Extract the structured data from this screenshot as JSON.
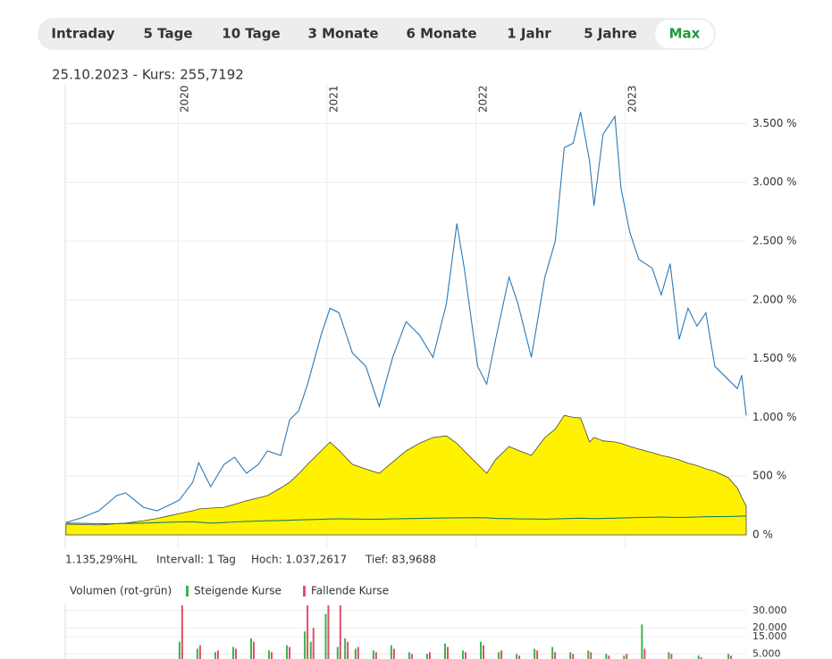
{
  "tabs": [
    {
      "label": "Intraday"
    },
    {
      "label": "5 Tage"
    },
    {
      "label": "10 Tage"
    },
    {
      "label": "3 Monate"
    },
    {
      "label": "6 Monate"
    },
    {
      "label": "1 Jahr"
    },
    {
      "label": "5 Jahre"
    },
    {
      "label": "Max",
      "selected": true
    }
  ],
  "header": "25.10.2023  -  Kurs: 255,7192",
  "stats": [
    "1.135,29%HL",
    "Intervall: 1 Tag",
    "Hoch: 1.037,2617",
    "Tief: 83,9688"
  ],
  "chart_data": [
    {
      "type": "line",
      "x": [
        2019.25,
        2019.35,
        2019.47,
        2019.59,
        2019.65,
        2019.77,
        2019.86,
        2019.95,
        2020.01,
        2020.1,
        2020.14,
        2020.22,
        2020.31,
        2020.38,
        2020.46,
        2020.54,
        2020.6,
        2020.69,
        2020.75,
        2020.81,
        2020.87,
        2020.96,
        2021.02,
        2021.08,
        2021.17,
        2021.26,
        2021.35,
        2021.44,
        2021.53,
        2021.62,
        2021.71,
        2021.8,
        2021.87,
        2021.92,
        2022.01,
        2022.07,
        2022.13,
        2022.22,
        2022.28,
        2022.37,
        2022.46,
        2022.53,
        2022.59,
        2022.65,
        2022.7,
        2022.76,
        2022.79,
        2022.85,
        2022.93,
        2022.97,
        2023.03,
        2023.09,
        2023.18,
        2023.24,
        2023.3,
        2023.36,
        2023.42,
        2023.48,
        2023.54,
        2023.6,
        2023.69,
        2023.75,
        2023.78,
        2023.81
      ],
      "series": [
        {
          "style": "area",
          "color": "#fff200",
          "values": [
            91,
            88,
            84,
            95,
            100,
            121,
            140,
            165,
            182,
            205,
            220,
            228,
            235,
            260,
            290,
            315,
            334,
            400,
            448,
            520,
            600,
            714,
            790,
            720,
            600,
            560,
            524,
            620,
            714,
            780,
            828,
            843,
            780,
            714,
            600,
            524,
            640,
            752,
            720,
            676,
            828,
            900,
            1017,
            1000,
            995,
            790,
            830,
            800,
            790,
            780,
            752,
            730,
            700,
            676,
            660,
            638,
            610,
            590,
            562,
            540,
            486,
            400,
            320,
            243
          ]
        },
        {
          "style": "line",
          "color": "#1f7a6a",
          "values": [
            100,
            98,
            95,
            96,
            97,
            100,
            104,
            108,
            110,
            112,
            108,
            100,
            105,
            110,
            115,
            118,
            120,
            122,
            125,
            128,
            130,
            132,
            135,
            136,
            135,
            133,
            134,
            136,
            138,
            140,
            142,
            144,
            145,
            146,
            147,
            145,
            140,
            138,
            136,
            135,
            134,
            136,
            138,
            140,
            142,
            140,
            138,
            140,
            142,
            144,
            146,
            148,
            150,
            152,
            150,
            148,
            150,
            152,
            154,
            155,
            156,
            158,
            160,
            160
          ]
        },
        {
          "style": "line",
          "color": "#2a7ab8",
          "values": [
            106,
            144,
            205,
            334,
            357,
            235,
            205,
            258,
            296,
            448,
            615,
            410,
            600,
            660,
            524,
            600,
            714,
            676,
            980,
            1055,
            1283,
            1701,
            1929,
            1891,
            1549,
            1435,
            1093,
            1511,
            1815,
            1701,
            1511,
            1967,
            2650,
            2270,
            1435,
            1283,
            1663,
            2194,
            1967,
            1511,
            2194,
            2498,
            3295,
            3333,
            3599,
            3181,
            2802,
            3409,
            3561,
            2954,
            2574,
            2346,
            2270,
            2042,
            2308,
            1663,
            1929,
            1777,
            1891,
            1435,
            1321,
            1245,
            1359,
            1017
          ]
        }
      ],
      "xlim": [
        2019.245,
        2023.81
      ],
      "xticks": [
        2020,
        2021,
        2022,
        2023
      ],
      "ylim": [
        0,
        3830
      ],
      "yticks": [
        {
          "value": 0,
          "label": "0 %"
        },
        {
          "value": 500,
          "label": "500 %"
        },
        {
          "value": 1000,
          "label": "1.000 %"
        },
        {
          "value": 1500,
          "label": "1.500 %"
        },
        {
          "value": 2000,
          "label": "2.000 %"
        },
        {
          "value": 2500,
          "label": "2.500 %"
        },
        {
          "value": 3000,
          "label": "3.000 %"
        },
        {
          "value": 3500,
          "label": "3.500 %"
        }
      ],
      "grid": true
    },
    {
      "type": "bar",
      "title": "Volumen (rot-grün)",
      "x": [
        2020.02,
        2020.14,
        2020.26,
        2020.38,
        2020.5,
        2020.62,
        2020.74,
        2020.86,
        2020.9,
        2021.0,
        2021.08,
        2021.13,
        2021.2,
        2021.32,
        2021.44,
        2021.56,
        2021.68,
        2021.8,
        2021.92,
        2022.04,
        2022.16,
        2022.28,
        2022.4,
        2022.52,
        2022.64,
        2022.76,
        2022.88,
        2023.0,
        2023.12,
        2023.3,
        2023.5,
        2023.7
      ],
      "series": [
        {
          "name": "Steigende Kurse",
          "color": "#3cb44b",
          "values": [
            12000,
            8000,
            6000,
            9000,
            14000,
            7000,
            10000,
            18000,
            12000,
            28000,
            9000,
            14000,
            8000,
            7000,
            10000,
            6000,
            5000,
            11000,
            7000,
            12000,
            6000,
            5000,
            8000,
            9000,
            6000,
            7000,
            5000,
            4000,
            22000,
            6000,
            4000,
            5000
          ]
        },
        {
          "name": "Fallende Kurse",
          "color": "#e0506a",
          "values": [
            33000,
            10000,
            7000,
            8000,
            12000,
            6000,
            9000,
            33000,
            20000,
            33000,
            33000,
            12000,
            9000,
            6000,
            8000,
            5000,
            6000,
            9000,
            6000,
            10000,
            7000,
            4000,
            7000,
            6000,
            5000,
            6000,
            4000,
            5000,
            8000,
            5000,
            3000,
            4000
          ]
        }
      ],
      "xlim": [
        2019.245,
        2023.81
      ],
      "ylim": [
        0,
        34000
      ],
      "yticks": [
        {
          "value": 5000,
          "label": "5.000"
        },
        {
          "value": 15000,
          "label": "15.000"
        },
        {
          "value": 20000,
          "label": "20.000"
        },
        {
          "value": 30000,
          "label": "30.000"
        }
      ],
      "grid": true
    }
  ]
}
